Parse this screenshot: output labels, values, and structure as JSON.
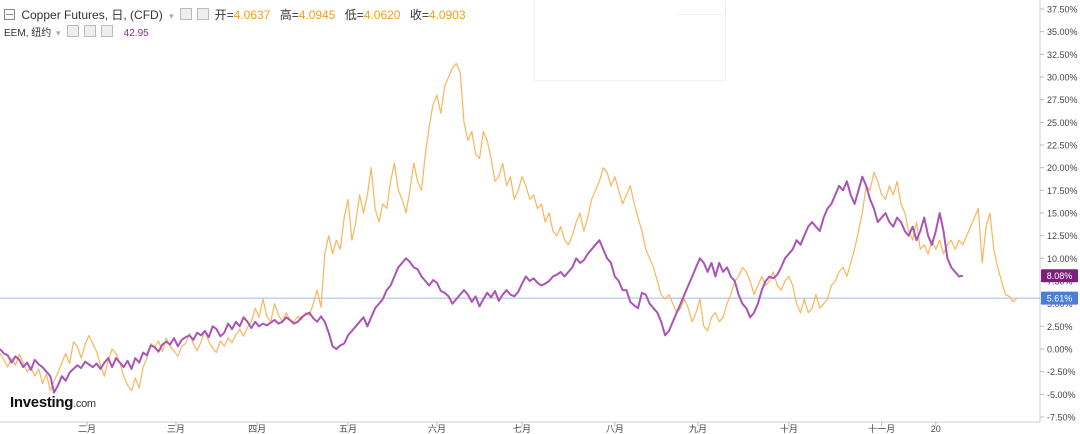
{
  "header": {
    "symbol": "Copper Futures, 日, (CFD)",
    "open_label": "开=",
    "open_value": "4.0637",
    "high_label": "高=",
    "high_value": "4.0945",
    "low_label": "低=",
    "low_value": "4.0620",
    "close_label": "收=",
    "close_value": "4.0903",
    "overlay_symbol": "EEM, 纽约",
    "overlay_value": "42.95"
  },
  "logo": {
    "text": "Investing",
    "suffix": ".com"
  },
  "chart_data": {
    "type": "line",
    "y_unit": "%",
    "ylim": [
      -7.5,
      37.5
    ],
    "y_ticks": [
      "37.50%",
      "35.00%",
      "32.50%",
      "30.00%",
      "27.50%",
      "25.00%",
      "22.50%",
      "20.00%",
      "17.50%",
      "15.00%",
      "12.50%",
      "10.00%",
      "7.50%",
      "5.00%",
      "2.50%",
      "0.00%",
      "-2.50%",
      "-5.00%",
      "-7.50%"
    ],
    "x_ticks": [
      "二月",
      "三月",
      "四月",
      "五月",
      "六月",
      "七月",
      "八月",
      "九月",
      "十月",
      "十一月",
      "20"
    ],
    "series": [
      {
        "name": "Copper Futures",
        "color": "#f9b55b",
        "last_value_label": "5.61%",
        "values": [
          -0.5,
          -1.2,
          -2.0,
          -1.0,
          -1.8,
          -0.6,
          -1.5,
          -2.5,
          -2.0,
          -3.0,
          -2.2,
          -3.8,
          -2.8,
          -4.6,
          -3.5,
          -2.6,
          -1.5,
          -0.5,
          -1.6,
          0.8,
          0.3,
          -1.0,
          0.5,
          1.5,
          0.6,
          -0.3,
          -1.8,
          -3.0,
          -1.2,
          0.0,
          -0.5,
          -1.5,
          -3.0,
          -4.0,
          -4.6,
          -3.2,
          -4.3,
          -2.0,
          -1.0,
          0.6,
          0.2,
          0.9,
          -0.3,
          1.2,
          0.3,
          -0.2,
          -0.8,
          0.3,
          0.6,
          1.7,
          0.6,
          -0.2,
          0.8,
          2.0,
          0.8,
          0.1,
          -0.4,
          0.9,
          0.3,
          1.2,
          0.7,
          1.6,
          2.2,
          1.4,
          2.4,
          3.0,
          4.5,
          3.5,
          5.5,
          3.6,
          3.0,
          5.0,
          3.8,
          3.0,
          4.0,
          3.2,
          3.0,
          3.6,
          3.2,
          4.0,
          3.7,
          5.0,
          6.5,
          4.6,
          10.5,
          12.5,
          10.5,
          12.0,
          11.0,
          14.5,
          16.5,
          12.0,
          14.0,
          17.0,
          15.0,
          17.0,
          20.0,
          15.5,
          14.0,
          16.0,
          15.5,
          18.5,
          20.5,
          17.5,
          16.5,
          15.0,
          17.5,
          20.5,
          18.5,
          17.5,
          21.5,
          24.5,
          27.0,
          28.0,
          26.0,
          29.0,
          30.0,
          31.0,
          31.5,
          30.5,
          25.0,
          23.0,
          24.0,
          21.5,
          21.0,
          24.0,
          23.0,
          21.0,
          18.5,
          19.0,
          20.5,
          18.0,
          19.0,
          16.5,
          17.5,
          19.0,
          18.0,
          16.5,
          17.0,
          15.5,
          16.0,
          14.0,
          15.0,
          13.0,
          12.5,
          13.5,
          12.0,
          11.5,
          12.5,
          14.0,
          15.0,
          13.0,
          14.5,
          16.5,
          17.5,
          18.5,
          20.0,
          19.5,
          18.0,
          19.0,
          17.5,
          16.0,
          17.0,
          18.0,
          16.0,
          14.5,
          13.0,
          11.0,
          10.0,
          9.0,
          7.5,
          6.0,
          5.5,
          6.0,
          5.0,
          4.0,
          4.5,
          5.5,
          4.5,
          3.0,
          4.0,
          5.5,
          2.5,
          2.0,
          3.5,
          4.0,
          3.0,
          3.5,
          5.0,
          6.0,
          7.5,
          8.0,
          9.0,
          8.5,
          7.5,
          6.0,
          7.0,
          8.0,
          7.0,
          7.5,
          8.5,
          7.0,
          6.5,
          7.5,
          8.0,
          7.0,
          5.0,
          4.0,
          5.5,
          4.0,
          4.5,
          6.0,
          4.5,
          5.0,
          5.5,
          7.0,
          7.5,
          8.5,
          9.0,
          8.0,
          9.5,
          11.0,
          13.0,
          15.0,
          18.0,
          17.5,
          19.5,
          18.5,
          17.0,
          16.5,
          18.0,
          17.0,
          18.5,
          16.0,
          15.0,
          13.0,
          12.0,
          14.0,
          11.0,
          11.5,
          10.5,
          12.0,
          11.0,
          12.0,
          10.5,
          11.5,
          12.0,
          11.0,
          12.0,
          11.5,
          12.5,
          13.5,
          14.5,
          15.5,
          9.5,
          13.5,
          15.0,
          11.0,
          9.0,
          7.5,
          6.0,
          5.8,
          5.2,
          5.61
        ]
      },
      {
        "name": "EEM, 纽约",
        "color": "#a855b5",
        "last_value_label": "8.08%",
        "values": [
          0.0,
          -0.5,
          -0.7,
          -1.5,
          -0.8,
          -1.2,
          -2.0,
          -1.5,
          -2.3,
          -1.2,
          -1.7,
          -2.0,
          -2.5,
          -3.0,
          -4.8,
          -4.0,
          -3.0,
          -3.5,
          -2.6,
          -2.2,
          -1.8,
          -2.1,
          -1.4,
          -1.7,
          -2.0,
          -1.6,
          -2.2,
          -1.5,
          -1.0,
          -2.0,
          -1.0,
          -1.5,
          -2.0,
          -1.3,
          -2.2,
          -1.0,
          -1.5,
          -0.4,
          -0.7,
          0.4,
          0.2,
          -0.3,
          0.5,
          0.8,
          0.5,
          1.2,
          0.3,
          1.0,
          1.3,
          1.5,
          1.0,
          1.8,
          1.5,
          2.0,
          1.3,
          2.5,
          2.2,
          1.4,
          1.8,
          2.8,
          2.2,
          3.0,
          2.5,
          3.5,
          3.0,
          2.3,
          3.0,
          2.5,
          2.8,
          2.6,
          2.9,
          3.2,
          2.8,
          3.0,
          3.5,
          3.2,
          2.8,
          3.0,
          3.5,
          3.8,
          4.0,
          3.4,
          3.0,
          3.6,
          3.0,
          1.8,
          0.3,
          0.0,
          0.4,
          0.6,
          1.5,
          2.0,
          2.5,
          3.0,
          3.5,
          2.5,
          3.5,
          4.5,
          5.0,
          5.5,
          6.5,
          7.0,
          8.0,
          9.0,
          9.5,
          10.0,
          9.6,
          9.0,
          8.8,
          8.0,
          7.5,
          7.0,
          7.6,
          7.3,
          6.4,
          6.2,
          5.8,
          5.0,
          5.5,
          6.0,
          6.5,
          6.0,
          5.2,
          5.8,
          4.7,
          5.5,
          6.2,
          5.7,
          6.4,
          5.3,
          6.0,
          6.5,
          6.0,
          5.8,
          6.3,
          7.2,
          8.0,
          7.5,
          7.8,
          7.3,
          7.0,
          7.2,
          7.5,
          8.0,
          8.2,
          8.5,
          8.0,
          8.5,
          9.0,
          10.0,
          9.5,
          9.8,
          10.5,
          11.0,
          11.5,
          12.0,
          11.0,
          10.0,
          9.5,
          8.0,
          7.5,
          6.5,
          6.5,
          5.2,
          4.8,
          4.5,
          6.2,
          6.0,
          5.0,
          4.5,
          4.0,
          3.0,
          1.5,
          2.0,
          3.0,
          4.0,
          5.0,
          6.0,
          7.0,
          8.0,
          9.0,
          10.0,
          9.5,
          8.5,
          9.5,
          8.0,
          9.5,
          8.5,
          9.0,
          8.0,
          7.5,
          6.0,
          5.0,
          4.5,
          3.5,
          4.0,
          5.0,
          6.5,
          7.5,
          8.0,
          7.8,
          8.2,
          9.0,
          10.0,
          10.5,
          11.0,
          12.0,
          11.5,
          12.5,
          13.5,
          14.0,
          13.5,
          13.0,
          14.5,
          15.5,
          16.0,
          17.0,
          18.0,
          17.5,
          18.5,
          17.0,
          16.0,
          17.5,
          19.0,
          18.0,
          16.5,
          15.5,
          14.0,
          14.5,
          15.0,
          14.0,
          13.5,
          14.5,
          14.0,
          13.0,
          12.5,
          13.5,
          12.0,
          13.0,
          14.5,
          12.5,
          11.5,
          13.0,
          15.0,
          13.0,
          10.0,
          9.0,
          8.5,
          8.0,
          8.08
        ]
      }
    ],
    "reference_line": {
      "value": 5.61,
      "color": "#9fbce0"
    }
  }
}
